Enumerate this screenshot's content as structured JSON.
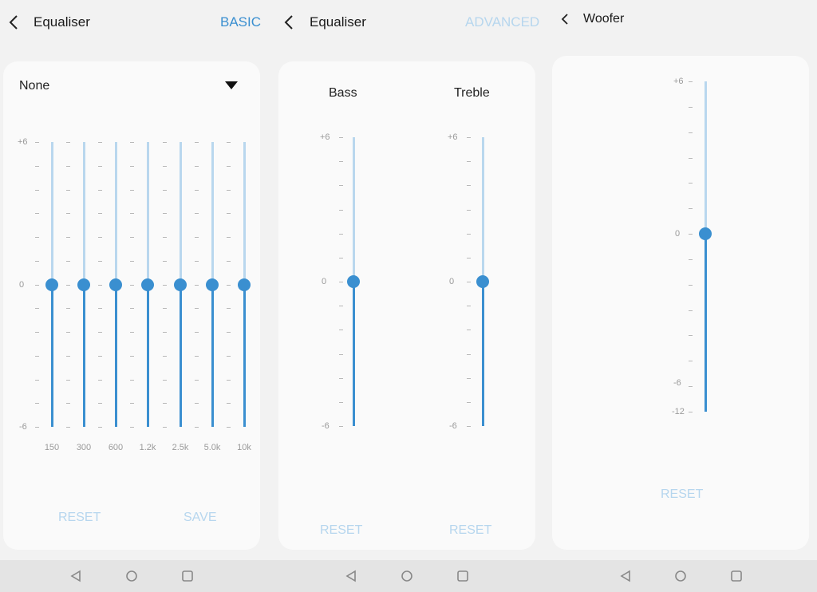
{
  "screen1": {
    "title": "Equaliser",
    "mode_toggle": "BASIC",
    "preset": "None",
    "scale": {
      "top": "+6",
      "mid": "0",
      "bottom": "-6"
    },
    "bands": [
      {
        "freq": "150",
        "value": 0
      },
      {
        "freq": "300",
        "value": 0
      },
      {
        "freq": "600",
        "value": 0
      },
      {
        "freq": "1.2k",
        "value": 0
      },
      {
        "freq": "2.5k",
        "value": 0
      },
      {
        "freq": "5.0k",
        "value": 0
      },
      {
        "freq": "10k",
        "value": 0
      }
    ],
    "reset_label": "RESET",
    "save_label": "SAVE"
  },
  "screen2": {
    "title": "Equaliser",
    "mode_toggle": "ADVANCED",
    "bass": {
      "label": "Bass",
      "value": 0,
      "reset_label": "RESET"
    },
    "treble": {
      "label": "Treble",
      "value": 0,
      "reset_label": "RESET"
    },
    "scale": {
      "top": "+6",
      "mid": "0",
      "bottom": "-6"
    }
  },
  "screen3": {
    "title": "Woofer",
    "woofer": {
      "value": 0
    },
    "scale": {
      "top": "+6",
      "mid": "0",
      "low": "-6",
      "bottom": "-12"
    },
    "reset_label": "RESET"
  },
  "colors": {
    "accent": "#3a8fd0",
    "accent_light": "#b9d7ee",
    "disabled_text": "#b6d6ee",
    "card": "#fafafa",
    "background": "#f2f2f2"
  },
  "navbar": {
    "icons": [
      "back-triangle-icon",
      "home-circle-icon",
      "recents-square-icon"
    ]
  }
}
